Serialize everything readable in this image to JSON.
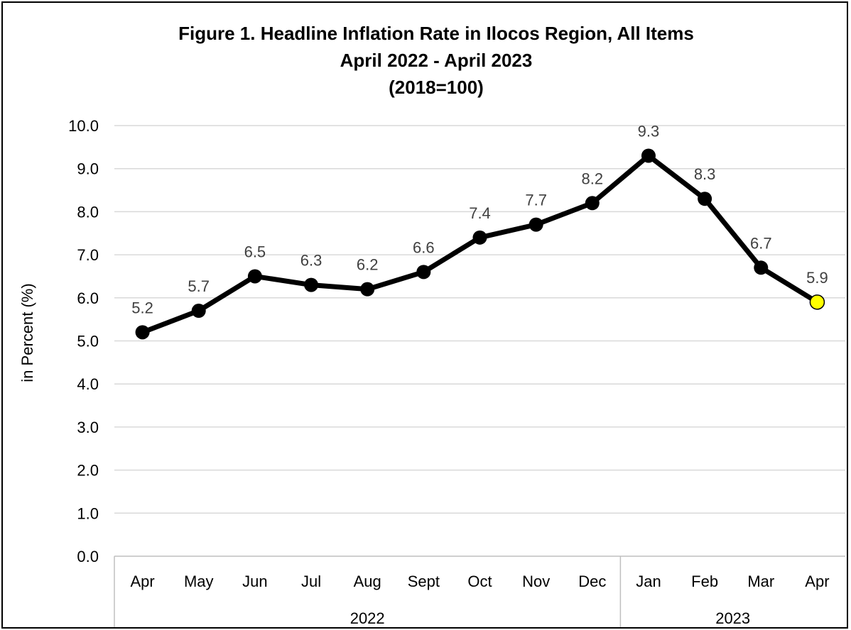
{
  "chart_data": {
    "type": "line",
    "title_lines": [
      "Figure 1. Headline Inflation Rate in Ilocos Region, All Items",
      "April 2022 - April 2023",
      "(2018=100)"
    ],
    "ylabel": "in Percent (%)",
    "xlabel": "",
    "ylim": [
      0,
      10
    ],
    "y_ticks": [
      "0.0",
      "1.0",
      "2.0",
      "3.0",
      "4.0",
      "5.0",
      "6.0",
      "7.0",
      "8.0",
      "9.0",
      "10.0"
    ],
    "grid": true,
    "legend": "none",
    "categories": [
      "Apr",
      "May",
      "Jun",
      "Jul",
      "Aug",
      "Sept",
      "Oct",
      "Nov",
      "Dec",
      "Jan",
      "Feb",
      "Mar",
      "Apr"
    ],
    "year_groups": [
      {
        "label": "2022",
        "count": 9
      },
      {
        "label": "2023",
        "count": 4
      }
    ],
    "series": [
      {
        "values": [
          5.2,
          5.7,
          6.5,
          6.3,
          6.2,
          6.6,
          7.4,
          7.7,
          8.2,
          9.3,
          8.3,
          6.7,
          5.9
        ],
        "labels": [
          "5.2",
          "5.7",
          "6.5",
          "6.3",
          "6.2",
          "6.6",
          "7.4",
          "7.7",
          "8.2",
          "9.3",
          "8.3",
          "6.7",
          "5.9"
        ],
        "color": "#000000",
        "highlight_last_color": "#ffff00"
      }
    ]
  },
  "colors": {
    "line": "#000000",
    "grid": "#d9d9d9",
    "axis": "#bfbfbf",
    "data_label": "#404040",
    "highlight": "#ffff00"
  }
}
